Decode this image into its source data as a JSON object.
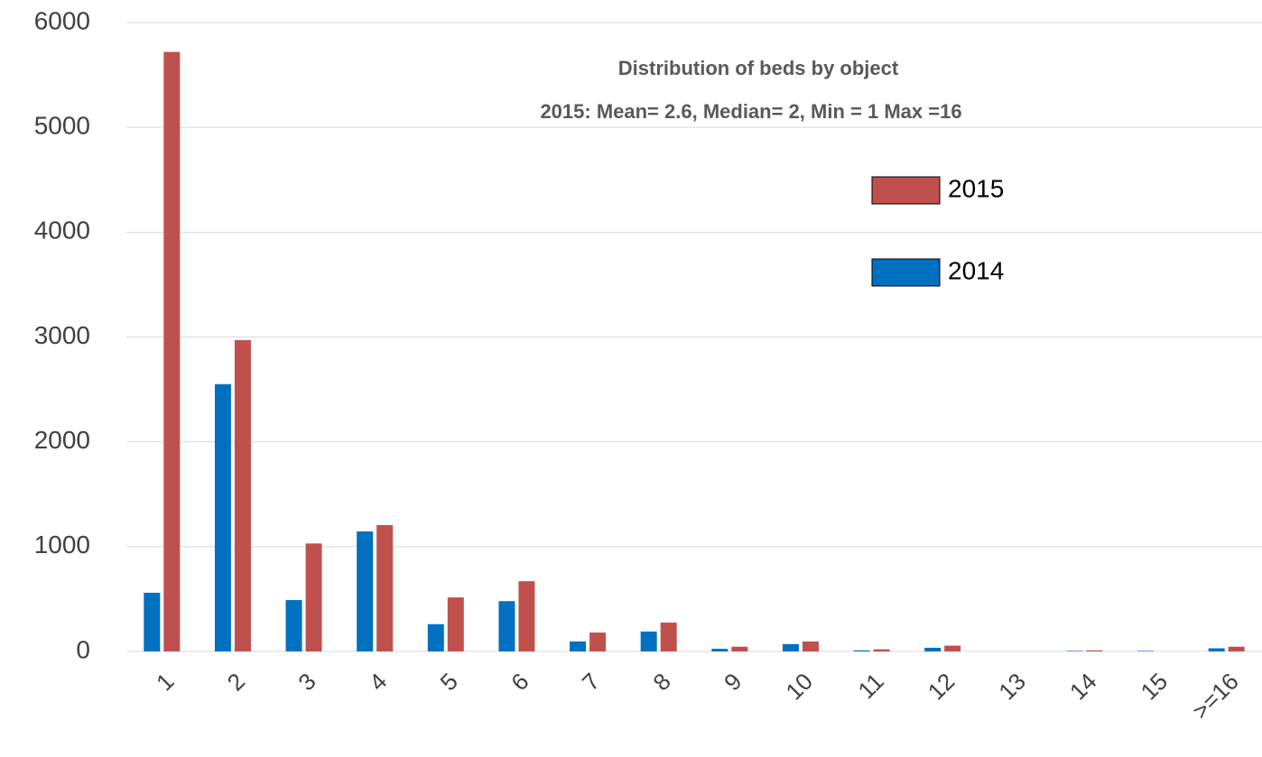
{
  "chart_data": {
    "type": "bar",
    "title": "Distribution of beds by object",
    "subtitle": "2015: Mean= 2.6, Median= 2, Min = 1   Max =16",
    "categories": [
      "1",
      "2",
      "3",
      "4",
      "5",
      "6",
      "7",
      "8",
      "9",
      "10",
      "11",
      "12",
      "13",
      "14",
      "15",
      ">=16"
    ],
    "series": [
      {
        "name": "2014",
        "color": "#0070c0",
        "values": [
          560,
          2550,
          490,
          1145,
          260,
          480,
          95,
          190,
          25,
          70,
          10,
          35,
          0,
          5,
          5,
          30
        ]
      },
      {
        "name": "2015",
        "color": "#c0504d",
        "values": [
          5720,
          2970,
          1030,
          1205,
          515,
          670,
          180,
          275,
          45,
          95,
          20,
          55,
          0,
          10,
          0,
          45
        ]
      }
    ],
    "ylim": [
      0,
      6000
    ],
    "yticks": [
      0,
      1000,
      2000,
      3000,
      4000,
      5000,
      6000
    ],
    "grid": true
  }
}
